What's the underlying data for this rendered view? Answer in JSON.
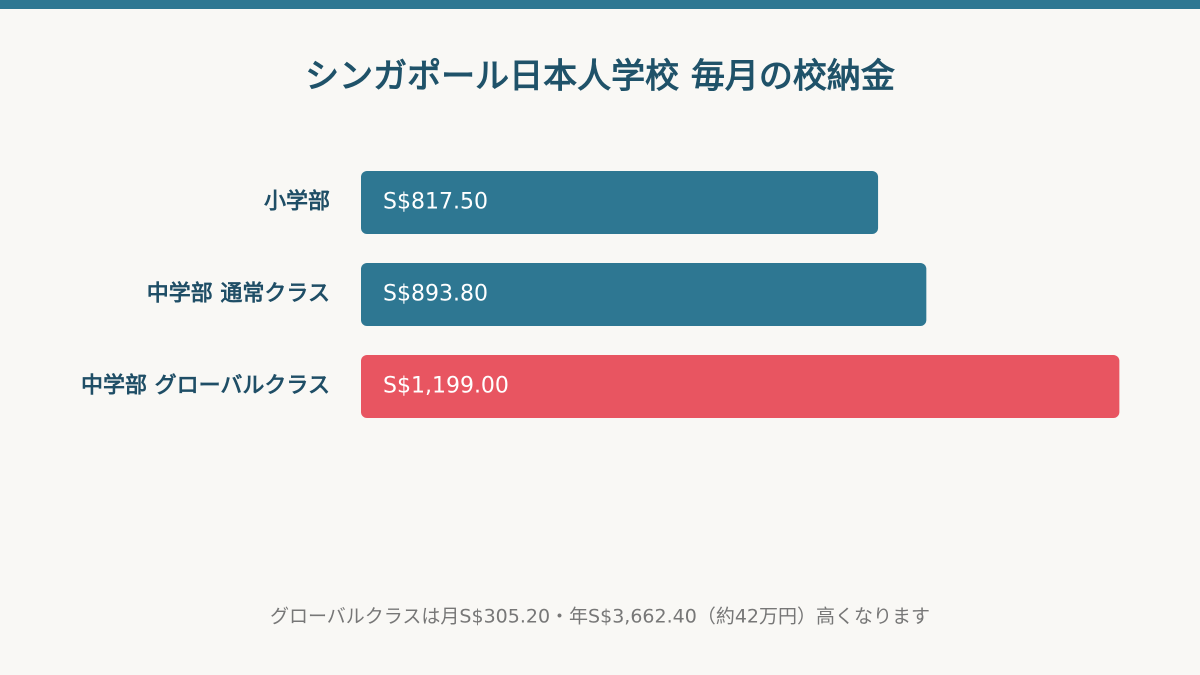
{
  "chart_data": {
    "type": "bar",
    "orientation": "horizontal",
    "title": "シンガポール日本人学校  毎月の校納金",
    "categories": [
      "小学部",
      "中学部 通常クラス",
      "中学部 グローバルクラス"
    ],
    "values": [
      817.5,
      893.8,
      1199.0
    ],
    "value_labels": [
      "S$817.50",
      "S$893.80",
      "S$1,199.00"
    ],
    "colors": [
      "#2e7792",
      "#2e7792",
      "#e85561"
    ],
    "xlim": [
      0,
      1200
    ],
    "annotation": "グローバルクラスは月S$305.20・年S$3,662.40（約42万円）高くなります"
  }
}
